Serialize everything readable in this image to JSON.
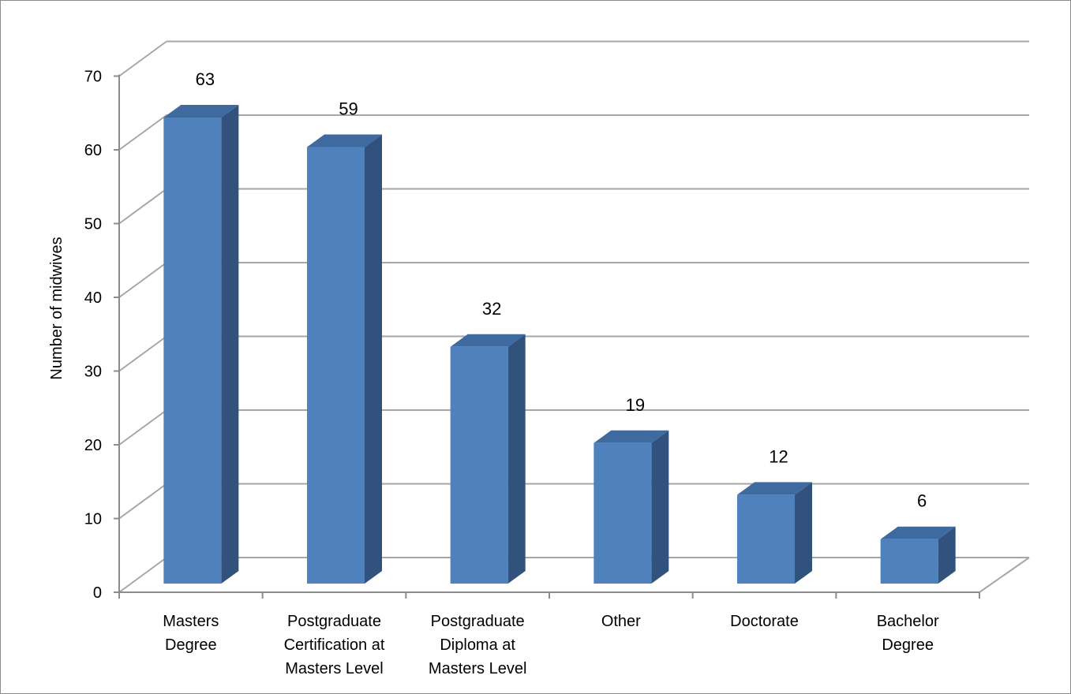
{
  "chart_data": {
    "type": "bar",
    "style": "3d-column",
    "title": "",
    "xlabel": "",
    "ylabel": "Number of midwives",
    "ylim": [
      0,
      70
    ],
    "yticks": [
      0,
      10,
      20,
      30,
      40,
      50,
      60,
      70
    ],
    "grid": true,
    "legend": "none",
    "categories": [
      [
        "Masters",
        "Degree"
      ],
      [
        "Postgraduate",
        "Certification at",
        "Masters Level"
      ],
      [
        "Postgraduate",
        "Diploma at",
        "Masters Level"
      ],
      [
        "Other"
      ],
      [
        "Doctorate"
      ],
      [
        "Bachelor",
        "Degree"
      ]
    ],
    "values": [
      63,
      59,
      32,
      19,
      12,
      6
    ],
    "colors": {
      "bar_front": "#4f81bd",
      "bar_side": "#30527c",
      "bar_top": "#3e6aa0",
      "grid": "#a6a6a6",
      "axis": "#8c8c8c"
    }
  }
}
